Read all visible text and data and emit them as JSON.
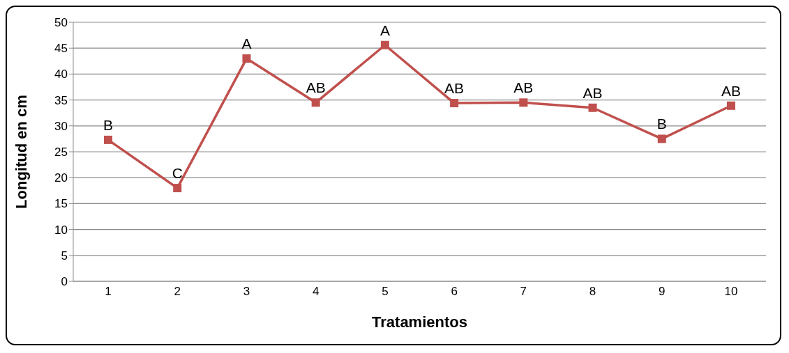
{
  "chart_data": {
    "type": "line",
    "xlabel": "Tratamientos",
    "ylabel": "Longitud en cm",
    "categories": [
      "1",
      "2",
      "3",
      "4",
      "5",
      "6",
      "7",
      "8",
      "9",
      "10"
    ],
    "series": [
      {
        "color": "#c0504d",
        "values": [
          27.3,
          18.0,
          43.0,
          34.5,
          45.6,
          34.4,
          34.5,
          33.5,
          27.5,
          33.9
        ]
      }
    ],
    "ylim": [
      0,
      50
    ],
    "yticks": [
      0,
      5,
      10,
      15,
      20,
      25,
      30,
      35,
      40,
      45,
      50
    ],
    "grid": "y",
    "marker": "square",
    "line_style": "solid",
    "legend": false,
    "annotations": [
      {
        "text": "B",
        "x": "1",
        "y": 27.3
      },
      {
        "text": "C",
        "x": "2",
        "y": 18.0
      },
      {
        "text": "A",
        "x": "3",
        "y": 43.0
      },
      {
        "text": "AB",
        "x": "4",
        "y": 34.5
      },
      {
        "text": "A",
        "x": "5",
        "y": 45.6
      },
      {
        "text": "AB",
        "x": "6",
        "y": 34.4
      },
      {
        "text": "AB",
        "x": "7",
        "y": 34.5
      },
      {
        "text": "AB",
        "x": "8",
        "y": 33.5
      },
      {
        "text": "B",
        "x": "9",
        "y": 27.5
      },
      {
        "text": "AB",
        "x": "10",
        "y": 33.9
      }
    ]
  }
}
